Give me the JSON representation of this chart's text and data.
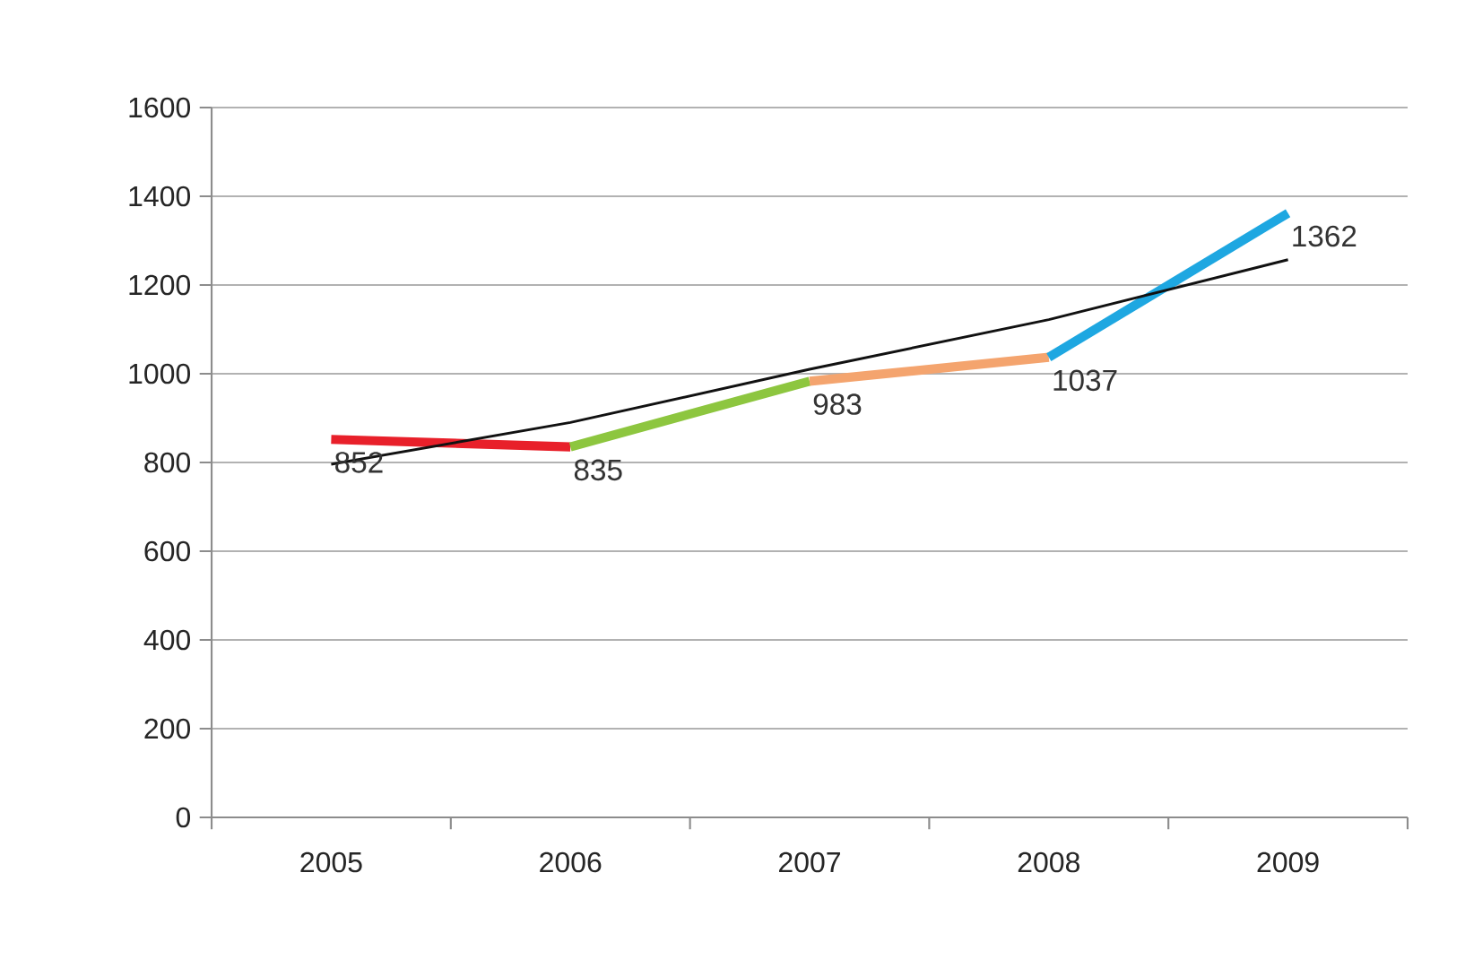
{
  "chart_data": {
    "type": "line",
    "categories": [
      "2005",
      "2006",
      "2007",
      "2008",
      "2009"
    ],
    "series": [
      {
        "color": "#e8202a",
        "values": [
          852,
          835,
          null,
          null,
          null
        ],
        "value_labels": [
          "852",
          null,
          null,
          null,
          null
        ]
      },
      {
        "color": "#8dc63f",
        "values": [
          null,
          835,
          983,
          null,
          null
        ],
        "value_labels": [
          null,
          "835",
          null,
          null,
          null
        ]
      },
      {
        "color": "#f4a46e",
        "values": [
          null,
          null,
          983,
          1037,
          null
        ],
        "value_labels": [
          null,
          null,
          "983",
          null,
          null
        ]
      },
      {
        "color": "#1ea7e1",
        "values": [
          null,
          null,
          null,
          1037,
          1362
        ],
        "value_labels": [
          null,
          null,
          null,
          "1037",
          "1362"
        ]
      },
      {
        "color": "#111111",
        "values": [
          796,
          890,
          1010,
          1122,
          1257
        ]
      }
    ],
    "ylim": [
      0,
      1600
    ],
    "yticks": [
      0,
      200,
      400,
      600,
      800,
      1000,
      1200,
      1400,
      1600
    ],
    "grid": "y",
    "marker": "none",
    "line_style": "solid"
  }
}
